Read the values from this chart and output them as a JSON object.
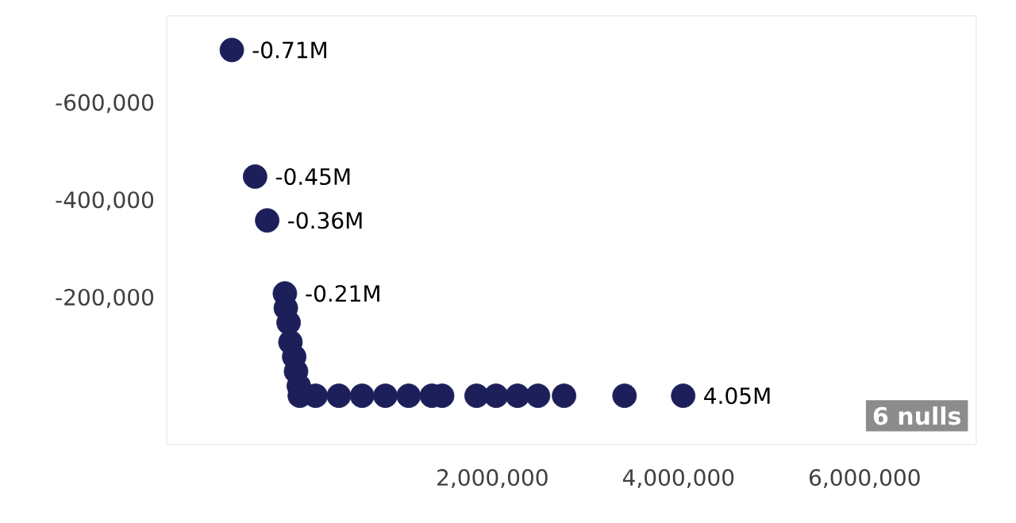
{
  "chart_data": {
    "type": "scatter",
    "marker": "circle",
    "color": "#1c1f5a",
    "x": [
      -800000,
      -550000,
      -420000,
      -230000,
      -220000,
      -190000,
      -170000,
      -130000,
      -110000,
      -80000,
      -70000,
      100000,
      350000,
      600000,
      850000,
      1100000,
      1350000,
      1460000,
      1830000,
      2040000,
      2270000,
      2490000,
      2770000,
      3420000,
      4050000
    ],
    "values": [
      -710000,
      -450000,
      -360000,
      -210000,
      -180000,
      -150000,
      -110000,
      -80000,
      -50000,
      -20000,
      0,
      0,
      0,
      0,
      0,
      0,
      0,
      0,
      0,
      0,
      0,
      0,
      0,
      0,
      0
    ],
    "xticks": [
      {
        "value": 2000000,
        "label": "2,000,000"
      },
      {
        "value": 4000000,
        "label": "4,000,000"
      },
      {
        "value": 6000000,
        "label": "6,000,000"
      }
    ],
    "xlim": [
      -1500000,
      7200000
    ],
    "ylim": [
      100000,
      -780000
    ],
    "yticks": [
      {
        "value": -600000,
        "label": "-600,000"
      },
      {
        "value": -400000,
        "label": "-400,000"
      },
      {
        "value": -200000,
        "label": "-200,000"
      }
    ],
    "annotations": [
      {
        "text": "-0.71M",
        "x": -800000,
        "y": -710000
      },
      {
        "text": "-0.45M",
        "x": -550000,
        "y": -450000
      },
      {
        "text": "-0.36M",
        "x": -420000,
        "y": -360000
      },
      {
        "text": "-0.21M",
        "x": -230000,
        "y": -210000
      },
      {
        "text": "4.05M",
        "x": 4050000,
        "y": 0
      },
      "6 nulls"
    ]
  }
}
